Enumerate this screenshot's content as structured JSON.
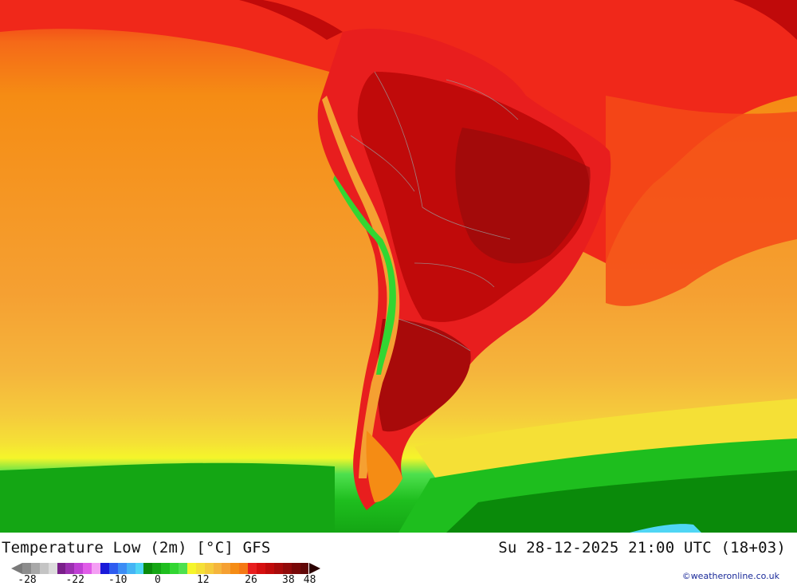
{
  "map": {
    "title": "Temperature Low (2m) [°C] GFS",
    "valid_time": "Su 28-12-2025 21:00 UTC (18+03)",
    "credit": "©weatheronline.co.uk",
    "legend": {
      "ticks": [
        "-28",
        "-22",
        "-10",
        "0",
        "12",
        "26",
        "38",
        "48"
      ],
      "colors": [
        "#8c8c8c",
        "#a8a8a8",
        "#c4c4c4",
        "#dcdcdc",
        "#7a1f8a",
        "#9b2fb0",
        "#bf3fd4",
        "#e05ce8",
        "#f49ef4",
        "#1a1ad9",
        "#2e5cf0",
        "#3b8cf5",
        "#45b4f5",
        "#4fd6f5",
        "#0a8a0a",
        "#14a614",
        "#1ebe1e",
        "#32d632",
        "#4ee04e",
        "#f5f52a",
        "#f5e036",
        "#f5cb3c",
        "#f5b53c",
        "#f5a032",
        "#f58c14",
        "#f57814",
        "#e81e1e",
        "#d60f0f",
        "#c00a0a",
        "#a80a0a",
        "#900a0a",
        "#780808",
        "#600606"
      ]
    }
  }
}
